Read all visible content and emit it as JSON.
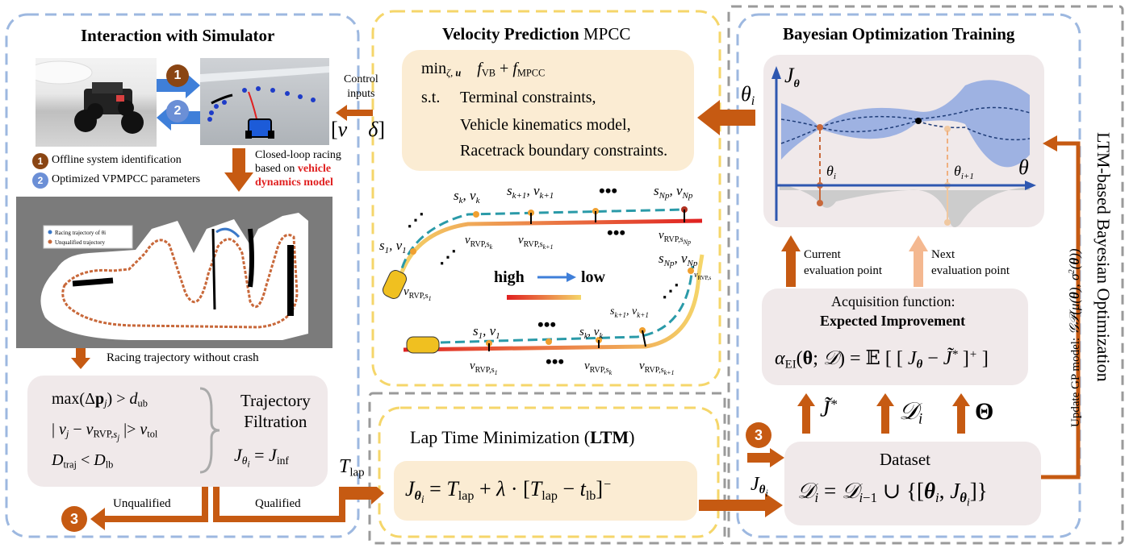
{
  "panels": {
    "simulator_title": "Interaction with Simulator",
    "velocity_title_bold": "Velocity Prediction",
    "velocity_title_plain": "MPCC",
    "bo_title": "Bayesian Optimization Training",
    "side_label": "LTM-based Bayesian Optimization",
    "side_gp_label": "Update GP model:",
    "ltm_title_plain": "Lap Time Minimization (",
    "ltm_title_bold": "LTM",
    "ltm_title_end": ")"
  },
  "simulator": {
    "control_inputs_1": "Control",
    "control_inputs_2": "inputs",
    "closed_loop_1": "Closed-loop racing",
    "closed_loop_2": "based on",
    "closed_loop_red_1": "vehicle",
    "closed_loop_red_2": "dynamics model",
    "badge_1": "1",
    "badge_2": "2",
    "legend_1": "Offline  system identification",
    "legend_2": "Optimized  VPMPCC parameters",
    "track_legend_1": "Racing trajectory of θi",
    "track_legend_2": "Unqualified trajectory",
    "racing_no_crash": "Racing trajectory without crash",
    "filtration_1": "Trajectory",
    "filtration_2": "Filtration",
    "unqualified": "Unqualified",
    "qualified": "Qualified",
    "badge_3": "3"
  },
  "mpcc": {
    "st": "s.t.",
    "c1": "Terminal constraints,",
    "c2": "Vehicle kinematics model,",
    "c3": "Racetrack boundary constraints.",
    "high": "high",
    "low": "low"
  },
  "bo": {
    "current_1": "Current",
    "current_2": "evaluation point",
    "next_1": "Next",
    "next_2": "evaluation point",
    "acq_1": "Acquisition function:",
    "acq_2": "Expected Improvement",
    "dataset": "Dataset"
  },
  "colors": {
    "arrow": "#c65a12",
    "panel_border_blue": "#9db8e0",
    "panel_border_yellow": "#f5d66a",
    "panel_border_gray": "#9a9a9a",
    "peach_box": "#fbecd3",
    "gray_box": "#f0e9ea",
    "gp_band": "#8fa8e0",
    "axis": "#2e57b0"
  },
  "icons": [
    "car-photo",
    "simulator-screenshot",
    "racetrack-map",
    "race-car-icon"
  ]
}
